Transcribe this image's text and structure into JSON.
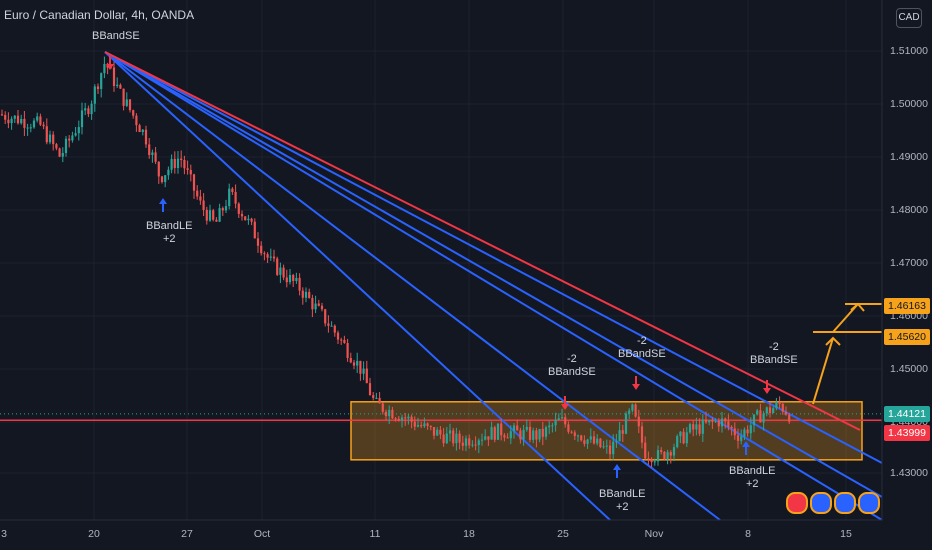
{
  "header": {
    "title": "Euro / Canadian Dollar, 4h, OANDA",
    "currency": "CAD"
  },
  "chart_data": {
    "type": "candlestick",
    "symbol": "EURCAD",
    "timeframe": "4h",
    "broker": "OANDA",
    "y_ticks": [
      "1.51000",
      "1.50000",
      "1.49000",
      "1.48000",
      "1.47000",
      "1.46000",
      "1.45000",
      "1.44000",
      "1.43000"
    ],
    "x_ticks": [
      "3",
      "20",
      "27",
      "Oct",
      "11",
      "18",
      "25",
      "Nov",
      "8",
      "15"
    ],
    "price_tags": [
      {
        "label": "1.46163",
        "color": "#f7a21b",
        "text_color": "#131722"
      },
      {
        "label": "1.45620",
        "color": "#f7a21b",
        "text_color": "#131722"
      },
      {
        "label": "1.44121",
        "color": "#26a69a",
        "text_color": "#ffffff"
      },
      {
        "label": "1.43999",
        "color": "#f23645",
        "text_color": "#ffffff"
      }
    ],
    "annotations": [
      {
        "id": "bbandse-1",
        "lines": [
          "BBandSE"
        ],
        "signal": "sell"
      },
      {
        "id": "bbandle-1",
        "lines": [
          "BBandLE",
          "+2"
        ],
        "signal": "buy"
      },
      {
        "id": "bbandse-2",
        "lines": [
          "-2",
          "BBandSE"
        ],
        "signal": "sell"
      },
      {
        "id": "bbandse-3",
        "lines": [
          "-2",
          "BBandSE"
        ],
        "signal": "sell"
      },
      {
        "id": "bbandle-2",
        "lines": [
          "BBandLE",
          "+2"
        ],
        "signal": "buy"
      },
      {
        "id": "bbandse-4",
        "lines": [
          "-2",
          "BBandSE"
        ],
        "signal": "sell"
      },
      {
        "id": "bbandle-3",
        "lines": [
          "BBandLE",
          "+2"
        ],
        "signal": "buy"
      }
    ],
    "range_box": {
      "top": 1.4435,
      "bottom": 1.4325,
      "color": "#f7a21b"
    },
    "horizontal_level": {
      "value": 1.43999,
      "color": "#f23645"
    },
    "last_price": 1.44121,
    "targets": [
      1.4562,
      1.46163
    ],
    "colors": {
      "up": "#26a69a",
      "down": "#ef5350",
      "fan": "#2962ff",
      "resistance": "#f23645",
      "bg": "#131722"
    }
  }
}
